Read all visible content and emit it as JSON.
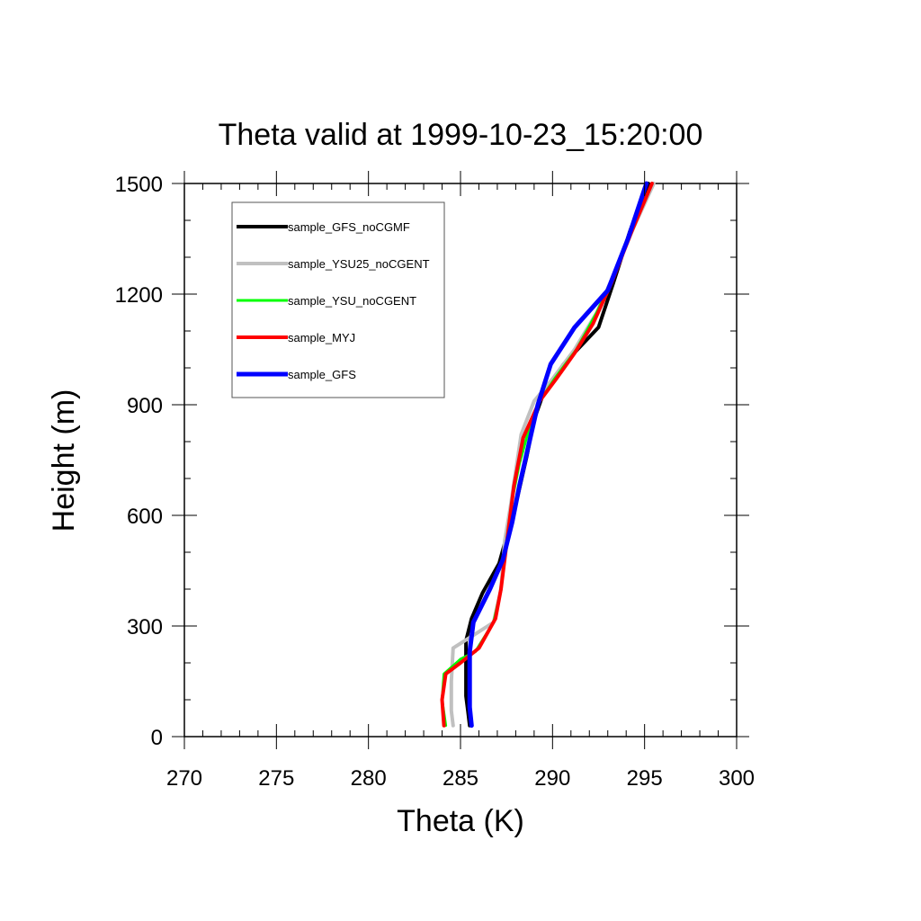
{
  "chart_data": {
    "type": "line",
    "title": "Theta valid at 1999-10-23_15:20:00",
    "xlabel": "Theta (K)",
    "ylabel": "Height (m)",
    "xlim": [
      270,
      300
    ],
    "ylim": [
      0,
      1500
    ],
    "x_ticks": [
      270,
      275,
      280,
      285,
      290,
      295,
      300
    ],
    "x_tick_labels": [
      "270",
      "275",
      "280",
      "285",
      "290",
      "295",
      "300"
    ],
    "x_minor_step": 1,
    "y_ticks": [
      0,
      300,
      600,
      900,
      1200,
      1500
    ],
    "y_tick_labels": [
      "0",
      "300",
      "600",
      "900",
      "1200",
      "1500"
    ],
    "y_minor_step": 100,
    "grid": false,
    "legend_position": "top-left",
    "series": [
      {
        "name": "sample_GFS_noCGMF",
        "color": "#000000",
        "width": 4,
        "points": [
          [
            285.5,
            30
          ],
          [
            285.4,
            70
          ],
          [
            285.3,
            110
          ],
          [
            285.3,
            200
          ],
          [
            285.3,
            260
          ],
          [
            285.6,
            320
          ],
          [
            286.2,
            390
          ],
          [
            287.1,
            470
          ],
          [
            287.6,
            560
          ],
          [
            288.1,
            650
          ],
          [
            288.6,
            760
          ],
          [
            289.0,
            860
          ],
          [
            289.5,
            930
          ],
          [
            290.6,
            1010
          ],
          [
            292.5,
            1110
          ],
          [
            293.3,
            1230
          ],
          [
            294.2,
            1370
          ],
          [
            295.2,
            1500
          ]
        ]
      },
      {
        "name": "sample_YSU25_noCGENT",
        "color": "#c0c0c0",
        "width": 4,
        "points": [
          [
            284.6,
            30
          ],
          [
            284.5,
            70
          ],
          [
            284.5,
            150
          ],
          [
            284.6,
            240
          ],
          [
            285.7,
            275
          ],
          [
            286.8,
            310
          ],
          [
            287.2,
            400
          ],
          [
            287.4,
            530
          ],
          [
            287.7,
            620
          ],
          [
            288.0,
            720
          ],
          [
            288.3,
            820
          ],
          [
            289.0,
            910
          ],
          [
            290.0,
            970
          ],
          [
            291.2,
            1050
          ],
          [
            292.4,
            1150
          ],
          [
            293.4,
            1260
          ],
          [
            294.4,
            1380
          ],
          [
            295.5,
            1500
          ]
        ]
      },
      {
        "name": "sample_YSU_noCGENT",
        "color": "#00ff00",
        "width": 3,
        "points": [
          [
            284.2,
            30
          ],
          [
            284.0,
            100
          ],
          [
            284.1,
            170
          ],
          [
            285.0,
            210
          ],
          [
            285.8,
            230
          ],
          [
            286.8,
            310
          ],
          [
            287.2,
            400
          ],
          [
            287.5,
            530
          ],
          [
            287.8,
            640
          ],
          [
            288.2,
            740
          ],
          [
            288.7,
            830
          ],
          [
            289.3,
            910
          ],
          [
            290.1,
            970
          ],
          [
            291.3,
            1050
          ],
          [
            292.4,
            1150
          ],
          [
            293.4,
            1260
          ],
          [
            294.4,
            1380
          ],
          [
            295.4,
            1500
          ]
        ]
      },
      {
        "name": "sample_MYJ",
        "color": "#ff0000",
        "width": 4,
        "points": [
          [
            284.1,
            30
          ],
          [
            284.0,
            100
          ],
          [
            284.2,
            170
          ],
          [
            285.0,
            200
          ],
          [
            286.0,
            240
          ],
          [
            286.9,
            320
          ],
          [
            287.2,
            400
          ],
          [
            287.6,
            560
          ],
          [
            287.9,
            680
          ],
          [
            288.4,
            810
          ],
          [
            289.3,
            910
          ],
          [
            290.2,
            970
          ],
          [
            291.2,
            1040
          ],
          [
            292.2,
            1120
          ],
          [
            293.2,
            1230
          ],
          [
            294.3,
            1370
          ],
          [
            295.4,
            1500
          ]
        ]
      },
      {
        "name": "sample_GFS",
        "color": "#0000ff",
        "width": 5,
        "points": [
          [
            285.6,
            30
          ],
          [
            285.5,
            80
          ],
          [
            285.5,
            150
          ],
          [
            285.5,
            230
          ],
          [
            285.7,
            310
          ],
          [
            286.6,
            400
          ],
          [
            287.3,
            480
          ],
          [
            287.8,
            580
          ],
          [
            288.2,
            680
          ],
          [
            288.7,
            790
          ],
          [
            289.2,
            900
          ],
          [
            289.9,
            1010
          ],
          [
            291.2,
            1110
          ],
          [
            293.0,
            1210
          ],
          [
            294.1,
            1350
          ],
          [
            295.1,
            1500
          ]
        ]
      }
    ]
  }
}
